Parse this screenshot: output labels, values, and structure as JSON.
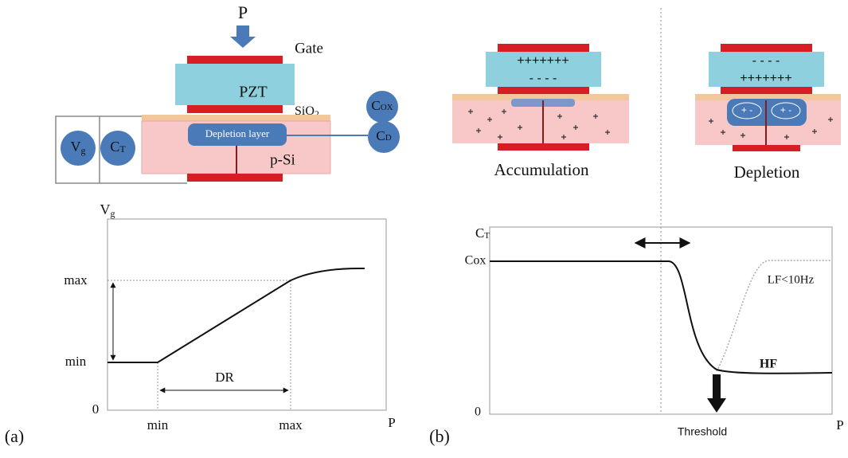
{
  "panel_a": {
    "label": "(a)",
    "diagram": {
      "force": "P",
      "gate": "Gate",
      "pzt": "PZT",
      "sio2": {
        "main": "SiO",
        "sub": "2"
      },
      "cox": {
        "main": "C",
        "sub": "OX"
      },
      "vg": {
        "main": "V",
        "sub": "g"
      },
      "ct": {
        "main": "C",
        "sub": "T"
      },
      "depletion_layer": "Depletion layer",
      "cd": {
        "main": "C",
        "sub": "D"
      },
      "substrate": "p-Si"
    },
    "graph": {
      "y_label": {
        "main": "V",
        "sub": "g"
      },
      "y_max": "max",
      "y_min": "min",
      "origin": "0",
      "range_label": "DR",
      "x_min": "min",
      "x_max": "max",
      "x_label": "P"
    }
  },
  "panel_b": {
    "label": "(b)",
    "accumulation": {
      "title": "Accumulation",
      "top_charges": "+++++++",
      "bottom_charges": "- - - -"
    },
    "depletion": {
      "title": "Depletion",
      "top_charges": "- - - -",
      "bottom_charges": "+++++++",
      "dipole": "+ -"
    },
    "graph": {
      "y_label": {
        "main": "C",
        "sub": "T"
      },
      "y_level": "Cox",
      "origin": "0",
      "lf_label": "LF<10Hz",
      "hf_label": "HF",
      "threshold": "Threshold",
      "x_label": "P"
    }
  }
}
